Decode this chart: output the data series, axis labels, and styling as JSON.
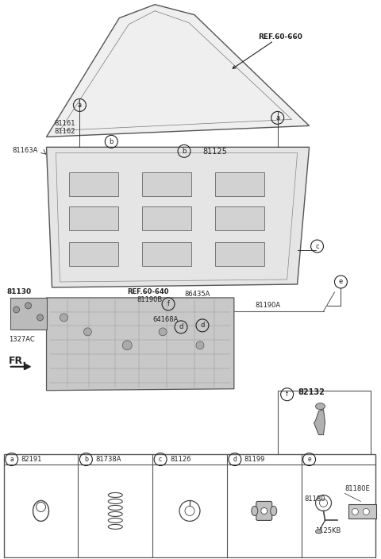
{
  "bg_color": "#ffffff",
  "text_color": "#222222",
  "labels": {
    "ref60660": "REF.60-660",
    "ref60640": "REF.60-640",
    "part81161": "81161",
    "part81162": "81162",
    "part81163A": "81163A",
    "part81125": "81125",
    "part81130": "81130",
    "part81190B": "81190B",
    "part81190A": "81190A",
    "part86435A": "86435A",
    "part64168A": "64168A",
    "part1327AC": "1327AC",
    "part82132": "82132",
    "part82191": "82191",
    "part81738A": "81738A",
    "part81126": "81126",
    "part81199": "81199",
    "part81180": "81180",
    "part81180E": "81180E",
    "part1125KB": "1125KB",
    "fr_label": "FR."
  },
  "figsize": [
    4.8,
    7.04
  ],
  "dpi": 100
}
